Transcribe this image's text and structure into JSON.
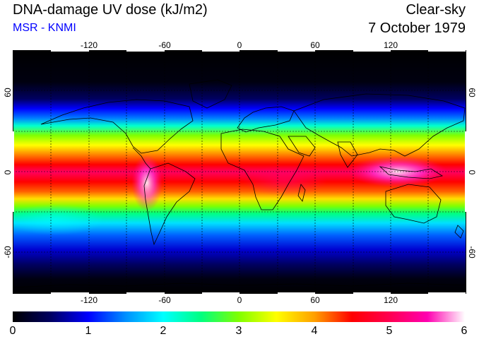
{
  "header": {
    "title": "DNA-damage UV dose (kJ/m2)",
    "subtitle": "MSR - KNMI",
    "sky_condition": "Clear-sky",
    "date": "7 October 1979"
  },
  "map": {
    "longitude_ticks": [
      "-120",
      "-60",
      "0",
      "60",
      "120"
    ],
    "latitude_ticks": [
      "60",
      "0",
      "-60"
    ],
    "graticule_style": "dashed"
  },
  "colorbar": {
    "labels": [
      "0",
      "1",
      "2",
      "3",
      "4",
      "5",
      "6"
    ],
    "colors": [
      "#000000",
      "#000060",
      "#0000ff",
      "#0090ff",
      "#00ffff",
      "#00ff80",
      "#80ff00",
      "#ffff00",
      "#ffa000",
      "#ff0000",
      "#ff0050",
      "#ff00b0",
      "#ffffff"
    ]
  },
  "colors": {
    "subtitle": "#0000ff",
    "coastline": "#000000",
    "graticule": "#000000"
  }
}
